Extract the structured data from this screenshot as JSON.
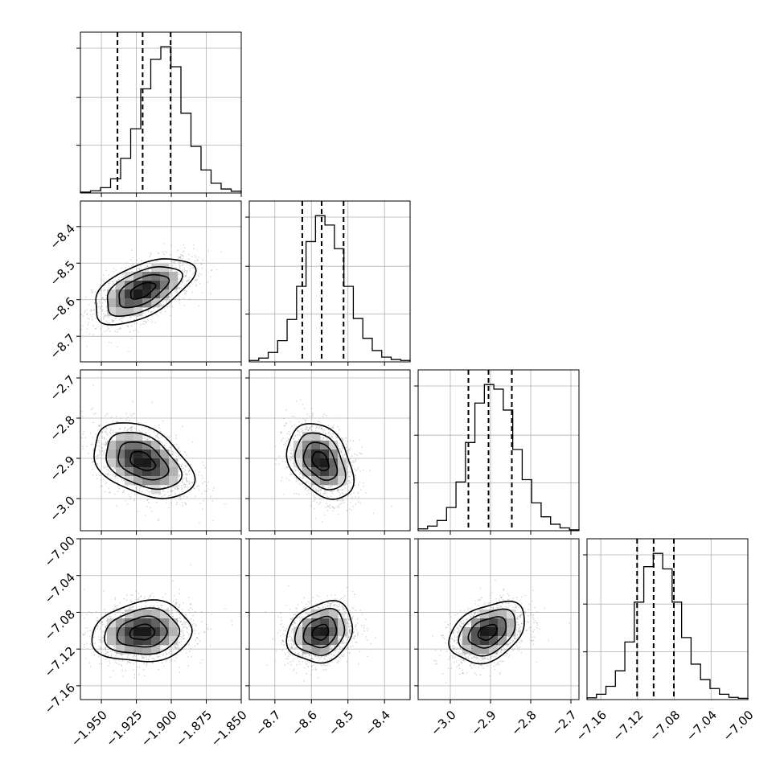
{
  "chart_data": {
    "type": "corner",
    "parameters": [
      {
        "range": [
          -1.965,
          -1.85
        ],
        "ticks": [
          -1.95,
          -1.925,
          -1.9,
          -1.875,
          -1.85
        ],
        "tick_labels": [
          "−1.950",
          "−1.925",
          "−1.900",
          "−1.875",
          "−1.850"
        ],
        "quantiles": [
          -1.9385,
          -1.9205,
          -1.9005
        ]
      },
      {
        "range": [
          -8.77,
          -8.33
        ],
        "ticks": [
          -8.7,
          -8.6,
          -8.5,
          -8.4
        ],
        "tick_labels": [
          "−8.7",
          "−8.6",
          "−8.5",
          "−8.4"
        ],
        "quantiles": [
          -8.625,
          -8.572,
          -8.512
        ]
      },
      {
        "range": [
          -3.08,
          -2.68
        ],
        "ticks": [
          -3.0,
          -2.9,
          -2.8,
          -2.7
        ],
        "tick_labels": [
          "−3.0",
          "−2.9",
          "−2.8",
          "−2.7"
        ],
        "quantiles": [
          -2.955,
          -2.905,
          -2.847
        ]
      },
      {
        "range": [
          -7.175,
          -7.0
        ],
        "ticks": [
          -7.16,
          -7.12,
          -7.08,
          -7.04,
          -7.0
        ],
        "tick_labels": [
          "−7.16",
          "−7.12",
          "−7.08",
          "−7.04",
          "−7.00"
        ],
        "quantiles": [
          -7.1205,
          -7.1025,
          -7.0805
        ]
      }
    ],
    "histograms": [
      [
        0.2,
        0.5,
        1.2,
        3.2,
        7.8,
        14.5,
        23.5,
        30.2,
        33.0,
        28.5,
        18.0,
        10.5,
        5.2,
        2.2,
        0.9,
        0.4
      ],
      [
        0.3,
        0.8,
        2.0,
        4.5,
        9.0,
        16.0,
        25.5,
        31.0,
        29.0,
        24.0,
        16.0,
        9.2,
        5.0,
        2.4,
        1.0,
        0.5,
        0.3
      ],
      [
        0.4,
        1.0,
        2.2,
        5.0,
        10.5,
        19.0,
        27.5,
        31.5,
        30.5,
        26.0,
        17.5,
        11.0,
        6.0,
        3.0,
        1.4,
        0.6,
        0.2
      ],
      [
        0.4,
        1.2,
        3.0,
        6.5,
        13.0,
        22.0,
        30.0,
        33.0,
        29.5,
        22.0,
        14.0,
        8.0,
        4.5,
        2.5,
        1.2,
        0.5,
        0.3
      ]
    ],
    "means": [
      -1.9207,
      -8.575,
      -2.907,
      -7.1018
    ],
    "sds": [
      0.0178,
      0.045,
      0.047,
      0.0165
    ],
    "correlations": [
      {
        "pair": [
          1,
          0
        ],
        "r": 0.55
      },
      {
        "pair": [
          2,
          0
        ],
        "r": -0.4
      },
      {
        "pair": [
          2,
          1
        ],
        "r": -0.35
      },
      {
        "pair": [
          3,
          0
        ],
        "r": 0.12
      },
      {
        "pair": [
          3,
          1
        ],
        "r": 0.2
      },
      {
        "pair": [
          3,
          2
        ],
        "r": 0.35
      }
    ],
    "contour_levels_sigma": [
      0.5,
      1.0,
      1.5,
      2.0
    ],
    "grid": true,
    "xlabel": "",
    "ylabel": "",
    "title": ""
  },
  "colors": {
    "axis": "#000000",
    "grid": "#b0b0b0",
    "line": "#000000",
    "scatter": "#808080"
  }
}
